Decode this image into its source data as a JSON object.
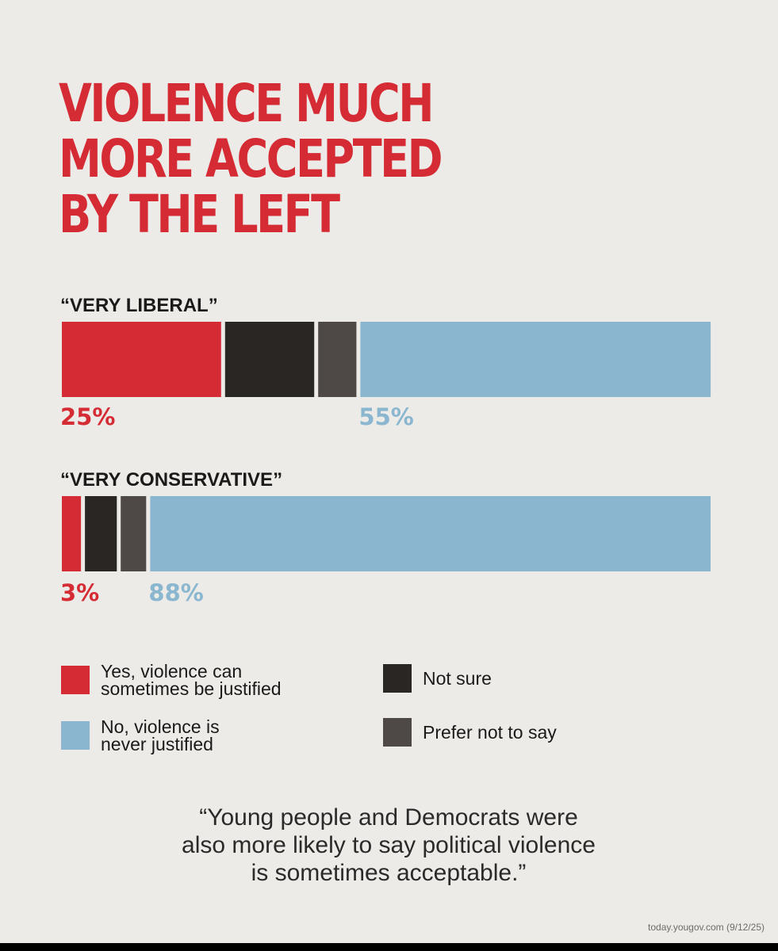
{
  "colors": {
    "background": "#ecebe8",
    "title": "#d52b34",
    "yes": "#d52b34",
    "not_sure": "#2a2624",
    "prefer_not": "#4e4946",
    "no": "#8ab7cf",
    "text": "#1b1a19"
  },
  "chart_data": {
    "type": "bar",
    "orientation": "horizontal",
    "stacked": true,
    "title": [
      "VIOLENCE MUCH",
      "MORE ACCEPTED",
      "BY THE LEFT"
    ],
    "xlim": [
      0,
      100
    ],
    "categories": [
      "“VERY LIBERAL”",
      "“VERY CONSERVATIVE”"
    ],
    "series": [
      {
        "name": "Yes, violence can sometimes be justified",
        "key": "yes",
        "values": [
          25,
          3
        ],
        "labels": [
          "25%",
          "3%"
        ]
      },
      {
        "name": "Not sure",
        "key": "not_sure",
        "values": [
          14,
          5
        ],
        "labels": [
          "",
          ""
        ]
      },
      {
        "name": "Prefer not to say",
        "key": "prefer_not",
        "values": [
          6,
          4
        ],
        "labels": [
          "",
          ""
        ]
      },
      {
        "name": "No, violence is never justified",
        "key": "no",
        "values": [
          55,
          88
        ],
        "labels": [
          "55%",
          "88%"
        ]
      }
    ],
    "legend_position": "bottom"
  },
  "legend": {
    "yes": [
      "Yes, violence can",
      "sometimes be justified"
    ],
    "no": [
      "No, violence is",
      "never justified"
    ],
    "not_sure": "Not sure",
    "prefer_not": "Prefer not to say"
  },
  "quote": [
    "“Young people and Democrats were",
    "also more likely to say political violence",
    "is sometimes acceptable.”"
  ],
  "source": "today.yougov.com (9/12/25)"
}
